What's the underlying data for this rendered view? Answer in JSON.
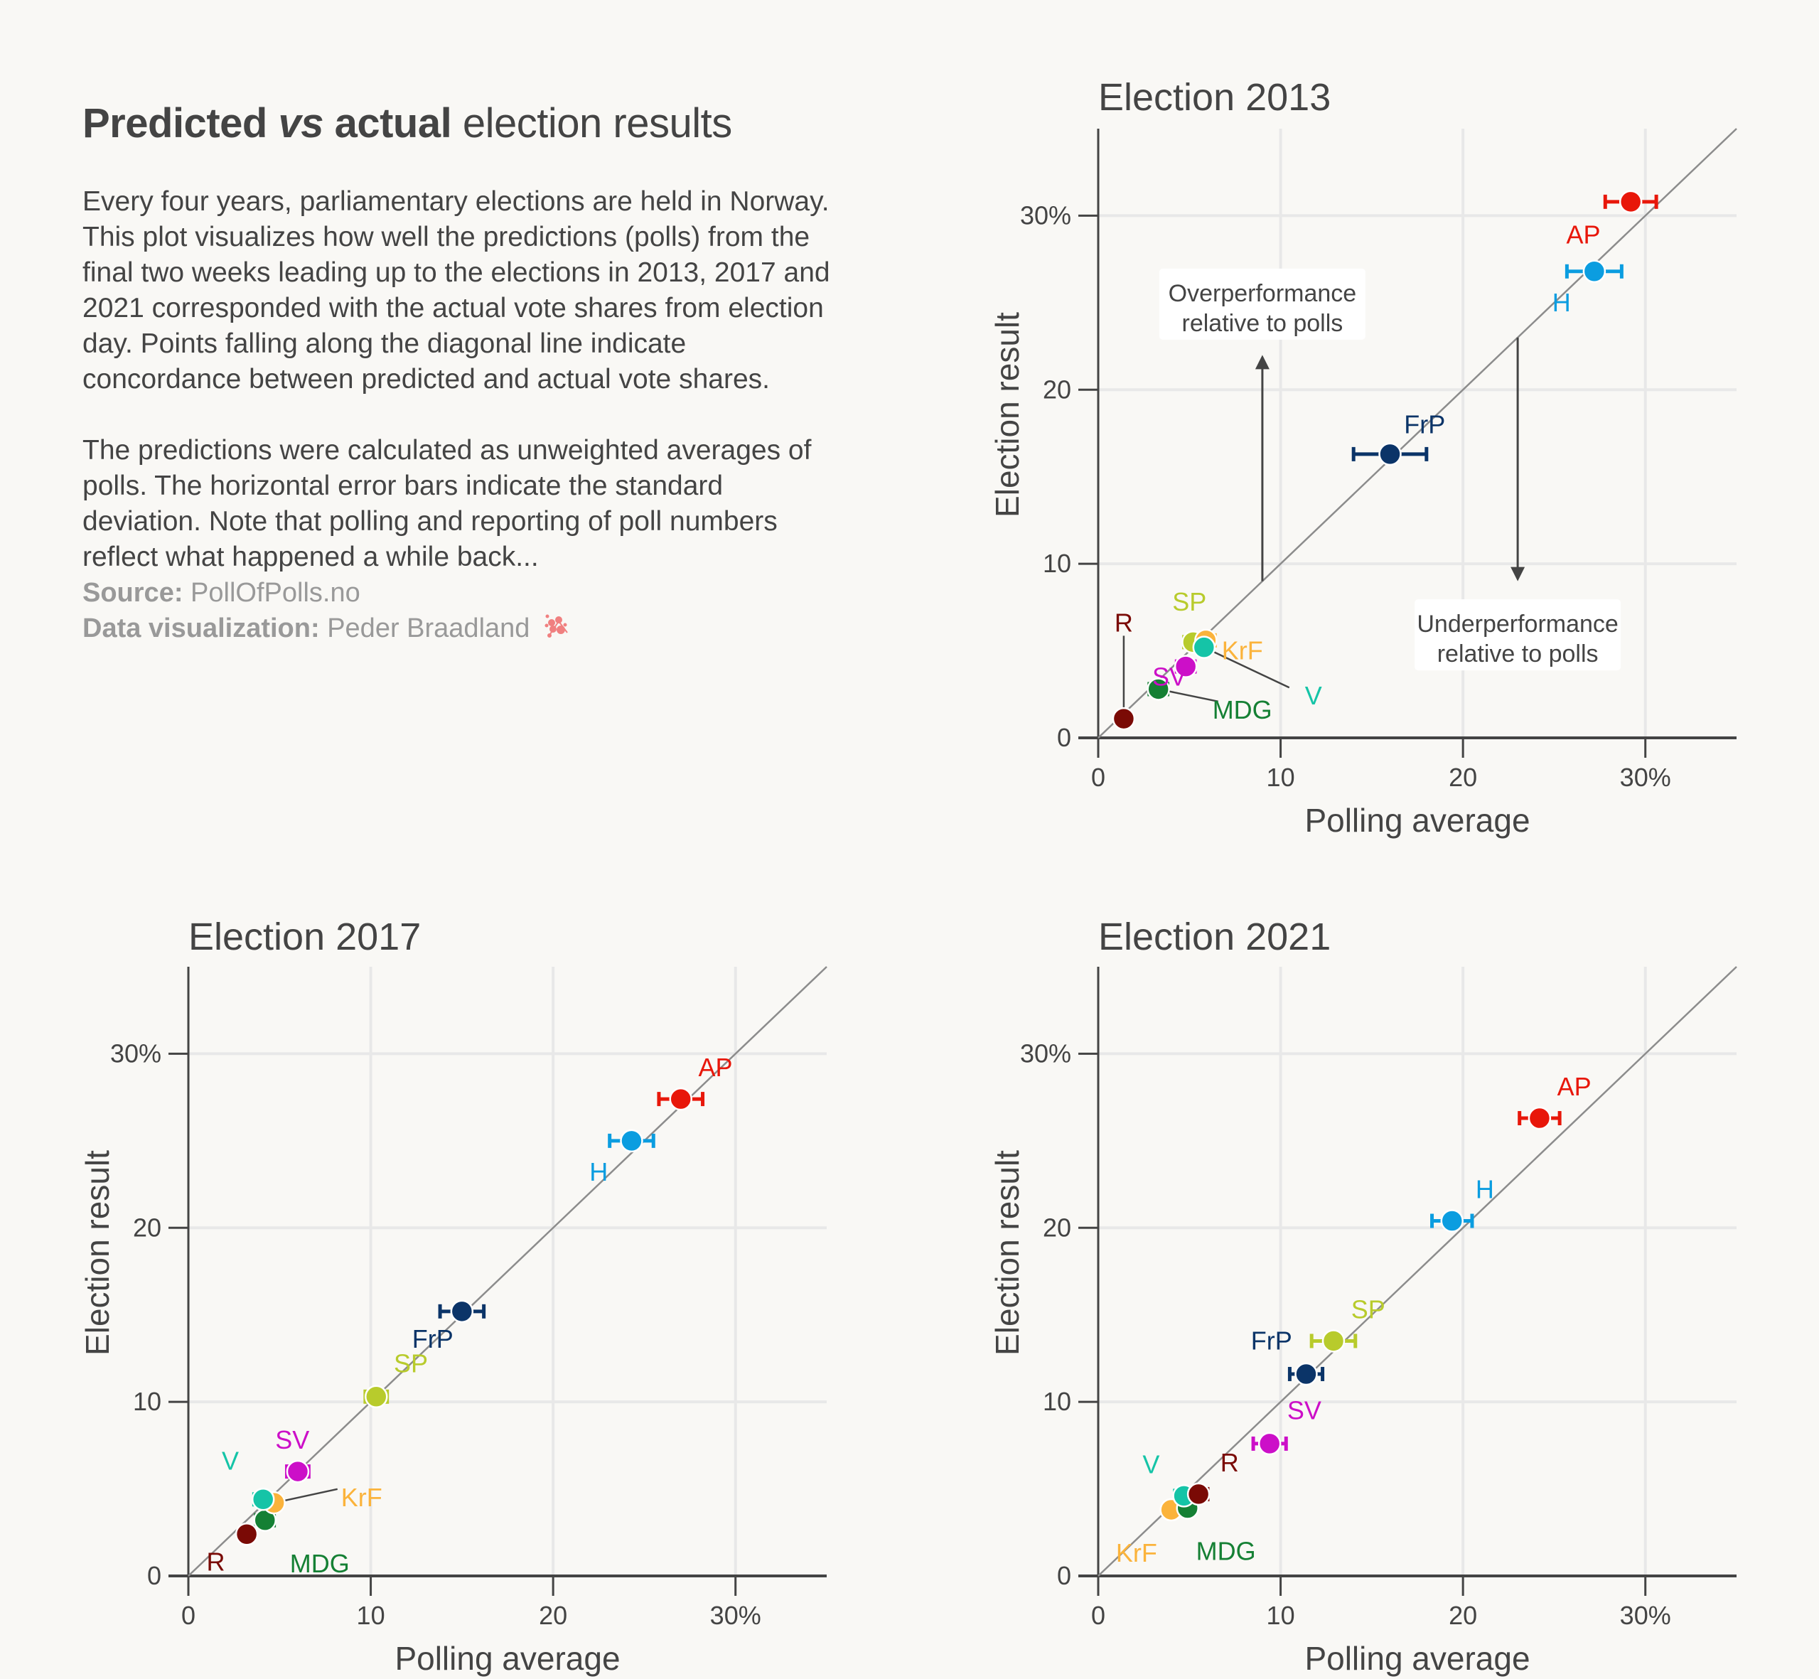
{
  "header": {
    "title_bold_1": "Predicted",
    "title_italic": "vs",
    "title_bold_2": "actual",
    "title_light": "election results"
  },
  "description": {
    "paragraph_1": "Every four years, parliamentary elections are held in Norway. This plot visualizes how well the predictions (polls) from the final two weeks leading up to the elections in 2013, 2017 and 2021 corresponded with the actual vote shares from election day. Points falling along the diagonal line indicate concordance between predicted and actual vote shares.",
    "paragraph_2": "The predictions were calculated as unweighted averages of polls.  The horizontal error bars indicate the standard deviation. Note that polling and reporting of poll numbers reflect what happened a while back..."
  },
  "credits": {
    "source_label": "Source:",
    "source_value": "PollOfPolls.no",
    "viz_label": "Data visualization:",
    "viz_value": "Peder Braadland",
    "logo_icon": "network-blob-icon",
    "logo_color": "#f08080"
  },
  "colors": {
    "AP": "#e8170a",
    "H": "#0b9de0",
    "FrP": "#0b3468",
    "SP": "#b8cb2c",
    "KrF": "#fbb33b",
    "V": "#15c4a7",
    "SV": "#cc0fc8",
    "MDG": "#158034",
    "R": "#7a0a05",
    "text": "#444444",
    "background": "#f9f8f5",
    "grid": "#e8e8e8",
    "diagonal": "#8c8c8c"
  },
  "chart_data": [
    {
      "type": "scatter",
      "title": "Election 2013",
      "xlabel": "Polling average",
      "ylabel": "Election result",
      "xlim": [
        0,
        35
      ],
      "ylim": [
        0,
        35
      ],
      "xticks": [
        "0",
        "10",
        "20",
        "30%"
      ],
      "yticks": [
        "0",
        "10",
        "20",
        "30%"
      ],
      "tick_values": [
        0,
        10,
        20,
        30
      ],
      "grid": true,
      "diagonal": true,
      "points": [
        {
          "party": "R",
          "x": 1.4,
          "y": 1.1,
          "sd": 0.3,
          "label_dx": 0.0,
          "label_dy": 5.5,
          "leader": true
        },
        {
          "party": "MDG",
          "x": 3.3,
          "y": 2.8,
          "sd": 0.5,
          "label_dx": 4.6,
          "label_dy": -1.2,
          "leader": true
        },
        {
          "party": "SV",
          "x": 4.8,
          "y": 4.1,
          "sd": 0.5,
          "label_dx": -0.9,
          "label_dy": -0.6,
          "leader": false
        },
        {
          "party": "SP",
          "x": 5.2,
          "y": 5.5,
          "sd": 0.5,
          "label_dx": -0.2,
          "label_dy": 2.3,
          "leader": false
        },
        {
          "party": "KrF",
          "x": 5.9,
          "y": 5.6,
          "sd": 0.5,
          "label_dx": 2.0,
          "label_dy": -0.6,
          "leader": false
        },
        {
          "party": "V",
          "x": 5.8,
          "y": 5.2,
          "sd": 0.4,
          "label_dx": 6.0,
          "label_dy": -2.8,
          "leader": true
        },
        {
          "party": "FrP",
          "x": 16.0,
          "y": 16.3,
          "sd": 2.0,
          "label_dx": 1.9,
          "label_dy": 1.7,
          "leader": false
        },
        {
          "party": "H",
          "x": 27.2,
          "y": 26.8,
          "sd": 1.5,
          "label_dx": -1.8,
          "label_dy": -1.8,
          "leader": false
        },
        {
          "party": "AP",
          "x": 29.2,
          "y": 30.8,
          "sd": 1.4,
          "label_dx": -2.6,
          "label_dy": -1.9,
          "leader": false
        }
      ],
      "annotations": [
        {
          "text_line_1": "Overperformance",
          "text_line_2": "relative to polls",
          "x": 9.0,
          "y": 25.0,
          "arrow_from": 9.0,
          "arrow_to_y": [
            9.0,
            22.0
          ],
          "direction": "up"
        },
        {
          "text_line_1": "Underperformance",
          "text_line_2": "relative to polls",
          "x": 23.0,
          "y": 6.0,
          "arrow_from": 23.0,
          "arrow_to_y": [
            23.0,
            9.0
          ],
          "direction": "down"
        }
      ]
    },
    {
      "type": "scatter",
      "title": "Election 2017",
      "xlabel": "Polling average",
      "ylabel": "Election result",
      "xlim": [
        0,
        35
      ],
      "ylim": [
        0,
        35
      ],
      "xticks": [
        "0",
        "10",
        "20",
        "30%"
      ],
      "yticks": [
        "0",
        "10",
        "20",
        "30%"
      ],
      "tick_values": [
        0,
        10,
        20,
        30
      ],
      "grid": true,
      "diagonal": true,
      "points": [
        {
          "party": "R",
          "x": 3.2,
          "y": 2.4,
          "sd": 0.2,
          "label_dx": -1.7,
          "label_dy": -1.6,
          "leader": false
        },
        {
          "party": "MDG",
          "x": 4.2,
          "y": 3.2,
          "sd": 0.5,
          "label_dx": 3.0,
          "label_dy": -2.5,
          "leader": false
        },
        {
          "party": "KrF",
          "x": 4.7,
          "y": 4.2,
          "sd": 0.4,
          "label_dx": 4.8,
          "label_dy": 0.3,
          "leader": true
        },
        {
          "party": "V",
          "x": 4.1,
          "y": 4.4,
          "sd": 0.5,
          "label_dx": -1.8,
          "label_dy": 2.2,
          "leader": false
        },
        {
          "party": "SV",
          "x": 6.0,
          "y": 6.0,
          "sd": 0.6,
          "label_dx": -0.3,
          "label_dy": 1.8,
          "leader": false
        },
        {
          "party": "SP",
          "x": 10.3,
          "y": 10.3,
          "sd": 0.6,
          "label_dx": 1.9,
          "label_dy": 1.9,
          "leader": false
        },
        {
          "party": "FrP",
          "x": 15.0,
          "y": 15.2,
          "sd": 1.2,
          "label_dx": -1.6,
          "label_dy": -1.6,
          "leader": false
        },
        {
          "party": "H",
          "x": 24.3,
          "y": 25.0,
          "sd": 1.2,
          "label_dx": -1.8,
          "label_dy": -1.8,
          "leader": false
        },
        {
          "party": "AP",
          "x": 27.0,
          "y": 27.4,
          "sd": 1.2,
          "label_dx": 1.9,
          "label_dy": 1.8,
          "leader": false
        }
      ]
    },
    {
      "type": "scatter",
      "title": "Election 2021",
      "xlabel": "Polling average",
      "ylabel": "Election result",
      "xlim": [
        0,
        35
      ],
      "ylim": [
        0,
        35
      ],
      "xticks": [
        "0",
        "10",
        "20",
        "30%"
      ],
      "yticks": [
        "0",
        "10",
        "20",
        "30%"
      ],
      "tick_values": [
        0,
        10,
        20,
        30
      ],
      "grid": true,
      "diagonal": true,
      "points": [
        {
          "party": "KrF",
          "x": 4.0,
          "y": 3.8,
          "sd": 0.3,
          "label_dx": -1.9,
          "label_dy": -2.5,
          "leader": false
        },
        {
          "party": "MDG",
          "x": 4.9,
          "y": 3.9,
          "sd": 0.3,
          "label_dx": 2.1,
          "label_dy": -2.5,
          "leader": false
        },
        {
          "party": "V",
          "x": 4.7,
          "y": 4.6,
          "sd": 0.5,
          "label_dx": -1.8,
          "label_dy": 1.8,
          "leader": false
        },
        {
          "party": "R",
          "x": 5.5,
          "y": 4.7,
          "sd": 0.5,
          "label_dx": 1.7,
          "label_dy": 1.8,
          "leader": false
        },
        {
          "party": "SV",
          "x": 9.4,
          "y": 7.6,
          "sd": 0.9,
          "label_dx": 1.9,
          "label_dy": 1.9,
          "leader": false
        },
        {
          "party": "FrP",
          "x": 11.4,
          "y": 11.6,
          "sd": 0.9,
          "label_dx": -1.9,
          "label_dy": 1.9,
          "leader": false
        },
        {
          "party": "SP",
          "x": 12.9,
          "y": 13.5,
          "sd": 1.2,
          "label_dx": 1.9,
          "label_dy": 1.8,
          "leader": false
        },
        {
          "party": "H",
          "x": 19.4,
          "y": 20.4,
          "sd": 1.1,
          "label_dx": 1.8,
          "label_dy": 1.8,
          "leader": false
        },
        {
          "party": "AP",
          "x": 24.2,
          "y": 26.3,
          "sd": 1.1,
          "label_dx": 1.9,
          "label_dy": 1.8,
          "leader": false
        }
      ]
    }
  ]
}
